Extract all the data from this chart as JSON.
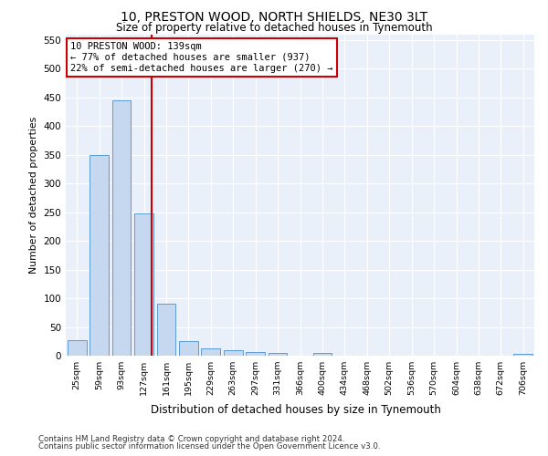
{
  "title": "10, PRESTON WOOD, NORTH SHIELDS, NE30 3LT",
  "subtitle": "Size of property relative to detached houses in Tynemouth",
  "xlabel": "Distribution of detached houses by size in Tynemouth",
  "ylabel": "Number of detached properties",
  "bar_color": "#c5d8f0",
  "bar_edge_color": "#5b9bd5",
  "background_color": "#eaf0f9",
  "grid_color": "#ffffff",
  "categories": [
    "25sqm",
    "59sqm",
    "93sqm",
    "127sqm",
    "161sqm",
    "195sqm",
    "229sqm",
    "263sqm",
    "297sqm",
    "331sqm",
    "366sqm",
    "400sqm",
    "434sqm",
    "468sqm",
    "502sqm",
    "536sqm",
    "570sqm",
    "604sqm",
    "638sqm",
    "672sqm",
    "706sqm"
  ],
  "values": [
    27,
    350,
    445,
    248,
    90,
    25,
    13,
    10,
    6,
    5,
    0,
    5,
    0,
    0,
    0,
    0,
    0,
    0,
    0,
    0,
    3
  ],
  "ylim": [
    0,
    560
  ],
  "yticks": [
    0,
    50,
    100,
    150,
    200,
    250,
    300,
    350,
    400,
    450,
    500,
    550
  ],
  "property_size": "139sqm",
  "annotation_text": "10 PRESTON WOOD: 139sqm\n← 77% of detached houses are smaller (937)\n22% of semi-detached houses are larger (270) →",
  "annotation_box_color": "#ffffff",
  "annotation_edge_color": "#cc0000",
  "property_line_color": "#cc0000",
  "footer_line1": "Contains HM Land Registry data © Crown copyright and database right 2024.",
  "footer_line2": "Contains public sector information licensed under the Open Government Licence v3.0."
}
